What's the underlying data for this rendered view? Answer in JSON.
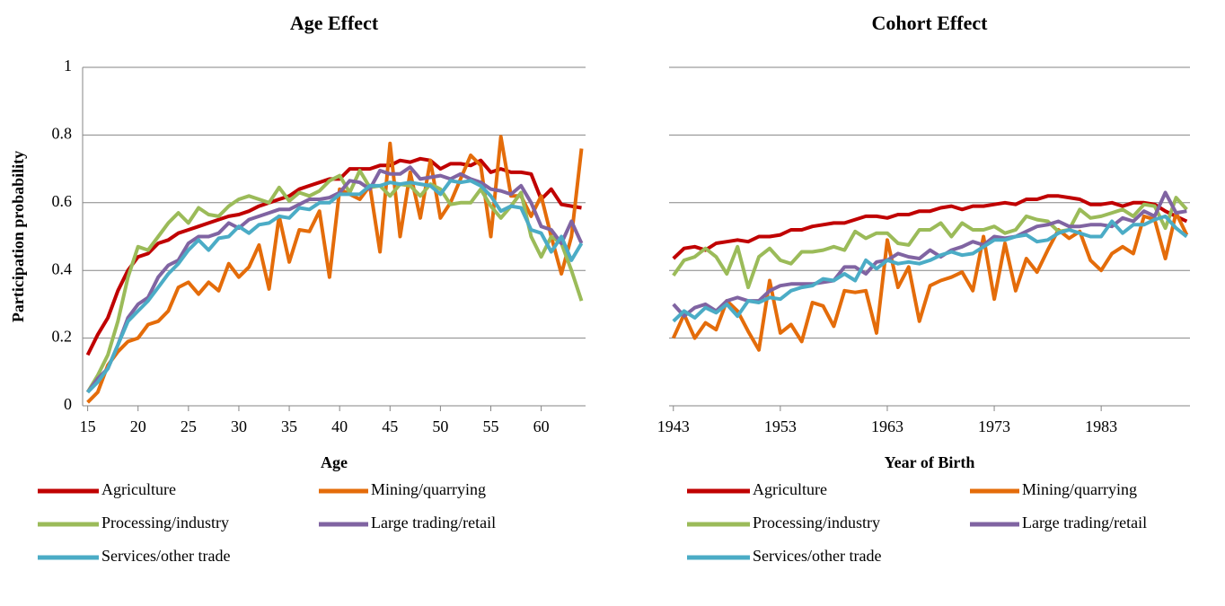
{
  "chart_data": [
    {
      "type": "line",
      "title": "Age Effect",
      "xlabel": "Age",
      "ylabel": "Participation probability",
      "x": [
        15,
        16,
        17,
        18,
        19,
        20,
        21,
        22,
        23,
        24,
        25,
        26,
        27,
        28,
        29,
        30,
        31,
        32,
        33,
        34,
        35,
        36,
        37,
        38,
        39,
        40,
        41,
        42,
        43,
        44,
        45,
        46,
        47,
        48,
        49,
        50,
        51,
        52,
        53,
        54,
        55,
        56,
        57,
        58,
        59,
        60,
        61,
        62,
        63,
        64
      ],
      "xlim": [
        14.5,
        64.4
      ],
      "xticks": [
        15,
        20,
        25,
        30,
        35,
        40,
        45,
        50,
        55,
        60
      ],
      "ylim": [
        0,
        1
      ],
      "yticks": [
        0,
        0.2,
        0.4,
        0.6,
        0.8,
        1
      ],
      "grid": true,
      "ytick_labels": true,
      "series": [
        {
          "name": "Agriculture",
          "color": "#c00000",
          "values": [
            0.15,
            0.21,
            0.26,
            0.34,
            0.4,
            0.44,
            0.45,
            0.48,
            0.49,
            0.51,
            0.52,
            0.53,
            0.54,
            0.55,
            0.56,
            0.565,
            0.575,
            0.59,
            0.6,
            0.61,
            0.62,
            0.64,
            0.65,
            0.66,
            0.67,
            0.67,
            0.7,
            0.7,
            0.7,
            0.71,
            0.71,
            0.725,
            0.72,
            0.73,
            0.725,
            0.7,
            0.715,
            0.715,
            0.71,
            0.725,
            0.69,
            0.7,
            0.69,
            0.69,
            0.685,
            0.61,
            0.64,
            0.595,
            0.59,
            0.585
          ]
        },
        {
          "name": "Mining/quarrying",
          "color": "#e46c0a",
          "values": [
            0.01,
            0.04,
            0.12,
            0.16,
            0.19,
            0.2,
            0.24,
            0.25,
            0.28,
            0.35,
            0.365,
            0.33,
            0.365,
            0.34,
            0.42,
            0.38,
            0.41,
            0.475,
            0.345,
            0.56,
            0.425,
            0.52,
            0.515,
            0.575,
            0.38,
            0.64,
            0.625,
            0.61,
            0.65,
            0.455,
            0.775,
            0.5,
            0.69,
            0.555,
            0.725,
            0.555,
            0.6,
            0.67,
            0.74,
            0.71,
            0.5,
            0.795,
            0.62,
            0.62,
            0.56,
            0.62,
            0.5,
            0.39,
            0.5,
            0.76
          ]
        },
        {
          "name": "Processing/industry",
          "color": "#9bbb59",
          "values": [
            0.04,
            0.09,
            0.15,
            0.25,
            0.38,
            0.47,
            0.46,
            0.5,
            0.54,
            0.57,
            0.54,
            0.585,
            0.565,
            0.56,
            0.59,
            0.61,
            0.62,
            0.61,
            0.6,
            0.645,
            0.605,
            0.63,
            0.62,
            0.635,
            0.665,
            0.68,
            0.63,
            0.695,
            0.645,
            0.65,
            0.62,
            0.655,
            0.65,
            0.62,
            0.655,
            0.64,
            0.595,
            0.6,
            0.6,
            0.64,
            0.59,
            0.555,
            0.59,
            0.63,
            0.5,
            0.44,
            0.5,
            0.48,
            0.4,
            0.31
          ]
        },
        {
          "name": "Large trading/retail",
          "color": "#8064a2",
          "values": [
            0.04,
            0.08,
            0.11,
            0.18,
            0.26,
            0.3,
            0.32,
            0.38,
            0.415,
            0.43,
            0.48,
            0.5,
            0.5,
            0.51,
            0.54,
            0.525,
            0.55,
            0.56,
            0.57,
            0.58,
            0.58,
            0.595,
            0.61,
            0.61,
            0.615,
            0.63,
            0.665,
            0.66,
            0.64,
            0.695,
            0.685,
            0.685,
            0.705,
            0.67,
            0.675,
            0.68,
            0.67,
            0.685,
            0.67,
            0.66,
            0.64,
            0.635,
            0.625,
            0.65,
            0.6,
            0.53,
            0.52,
            0.48,
            0.545,
            0.48
          ]
        },
        {
          "name": "Services/other trade",
          "color": "#4bacc6",
          "values": [
            0.04,
            0.07,
            0.11,
            0.18,
            0.25,
            0.28,
            0.31,
            0.35,
            0.39,
            0.42,
            0.46,
            0.49,
            0.46,
            0.495,
            0.5,
            0.53,
            0.51,
            0.535,
            0.54,
            0.56,
            0.555,
            0.585,
            0.58,
            0.6,
            0.6,
            0.625,
            0.625,
            0.625,
            0.65,
            0.65,
            0.66,
            0.655,
            0.66,
            0.655,
            0.65,
            0.625,
            0.665,
            0.66,
            0.665,
            0.65,
            0.62,
            0.575,
            0.59,
            0.585,
            0.52,
            0.51,
            0.455,
            0.5,
            0.43,
            0.48
          ]
        }
      ]
    },
    {
      "type": "line",
      "title": "Cohort Effect",
      "xlabel": "Year of Birth",
      "x": [
        1943,
        1944,
        1945,
        1946,
        1947,
        1948,
        1949,
        1950,
        1951,
        1952,
        1953,
        1954,
        1955,
        1956,
        1957,
        1958,
        1959,
        1960,
        1961,
        1962,
        1963,
        1964,
        1965,
        1966,
        1967,
        1968,
        1969,
        1970,
        1971,
        1972,
        1973,
        1974,
        1975,
        1976,
        1977,
        1978,
        1979,
        1980,
        1981,
        1982,
        1983,
        1984,
        1985,
        1986,
        1987,
        1988,
        1989,
        1990,
        1991
      ],
      "xlim": [
        1942.6,
        1991.3
      ],
      "xticks": [
        1943,
        1953,
        1963,
        1973,
        1983
      ],
      "ylim": [
        0,
        1
      ],
      "yticks": [
        0,
        0.2,
        0.4,
        0.6,
        0.8,
        1
      ],
      "grid": true,
      "ytick_labels": false,
      "series": [
        {
          "name": "Agriculture",
          "color": "#c00000",
          "values": [
            0.435,
            0.465,
            0.47,
            0.46,
            0.48,
            0.485,
            0.49,
            0.485,
            0.5,
            0.5,
            0.505,
            0.52,
            0.52,
            0.53,
            0.535,
            0.54,
            0.54,
            0.55,
            0.56,
            0.56,
            0.555,
            0.565,
            0.565,
            0.575,
            0.575,
            0.585,
            0.59,
            0.58,
            0.59,
            0.59,
            0.595,
            0.6,
            0.595,
            0.61,
            0.61,
            0.62,
            0.62,
            0.615,
            0.61,
            0.595,
            0.595,
            0.6,
            0.59,
            0.6,
            0.6,
            0.595,
            0.575,
            0.56,
            0.545
          ]
        },
        {
          "name": "Mining/quarrying",
          "color": "#e46c0a",
          "values": [
            0.2,
            0.27,
            0.2,
            0.245,
            0.225,
            0.31,
            0.28,
            0.22,
            0.165,
            0.37,
            0.215,
            0.24,
            0.19,
            0.305,
            0.295,
            0.235,
            0.34,
            0.335,
            0.34,
            0.215,
            0.49,
            0.35,
            0.41,
            0.25,
            0.355,
            0.37,
            0.38,
            0.395,
            0.34,
            0.5,
            0.315,
            0.48,
            0.34,
            0.435,
            0.395,
            0.46,
            0.52,
            0.495,
            0.515,
            0.43,
            0.4,
            0.45,
            0.47,
            0.45,
            0.56,
            0.55,
            0.435,
            0.57,
            0.505
          ]
        },
        {
          "name": "Processing/industry",
          "color": "#9bbb59",
          "values": [
            0.385,
            0.43,
            0.44,
            0.465,
            0.44,
            0.39,
            0.47,
            0.35,
            0.44,
            0.465,
            0.43,
            0.42,
            0.455,
            0.455,
            0.46,
            0.47,
            0.46,
            0.515,
            0.495,
            0.51,
            0.51,
            0.48,
            0.475,
            0.52,
            0.52,
            0.54,
            0.5,
            0.54,
            0.52,
            0.52,
            0.53,
            0.51,
            0.52,
            0.56,
            0.55,
            0.545,
            0.515,
            0.52,
            0.58,
            0.555,
            0.56,
            0.57,
            0.58,
            0.56,
            0.595,
            0.59,
            0.525,
            0.615,
            0.58
          ]
        },
        {
          "name": "Large trading/retail",
          "color": "#8064a2",
          "values": [
            0.3,
            0.265,
            0.29,
            0.3,
            0.28,
            0.31,
            0.32,
            0.31,
            0.31,
            0.34,
            0.355,
            0.36,
            0.36,
            0.36,
            0.365,
            0.37,
            0.41,
            0.41,
            0.39,
            0.425,
            0.43,
            0.45,
            0.44,
            0.435,
            0.46,
            0.44,
            0.46,
            0.47,
            0.485,
            0.475,
            0.5,
            0.495,
            0.5,
            0.515,
            0.53,
            0.535,
            0.545,
            0.53,
            0.53,
            0.535,
            0.535,
            0.53,
            0.555,
            0.545,
            0.575,
            0.56,
            0.63,
            0.57,
            0.575
          ]
        },
        {
          "name": "Services/other trade",
          "color": "#4bacc6",
          "values": [
            0.25,
            0.28,
            0.26,
            0.29,
            0.275,
            0.3,
            0.265,
            0.31,
            0.305,
            0.32,
            0.315,
            0.34,
            0.35,
            0.355,
            0.375,
            0.37,
            0.39,
            0.37,
            0.43,
            0.405,
            0.43,
            0.42,
            0.425,
            0.42,
            0.43,
            0.445,
            0.455,
            0.445,
            0.45,
            0.47,
            0.49,
            0.49,
            0.5,
            0.505,
            0.485,
            0.49,
            0.51,
            0.52,
            0.51,
            0.5,
            0.5,
            0.545,
            0.51,
            0.535,
            0.535,
            0.55,
            0.56,
            0.525,
            0.5
          ]
        }
      ]
    }
  ]
}
